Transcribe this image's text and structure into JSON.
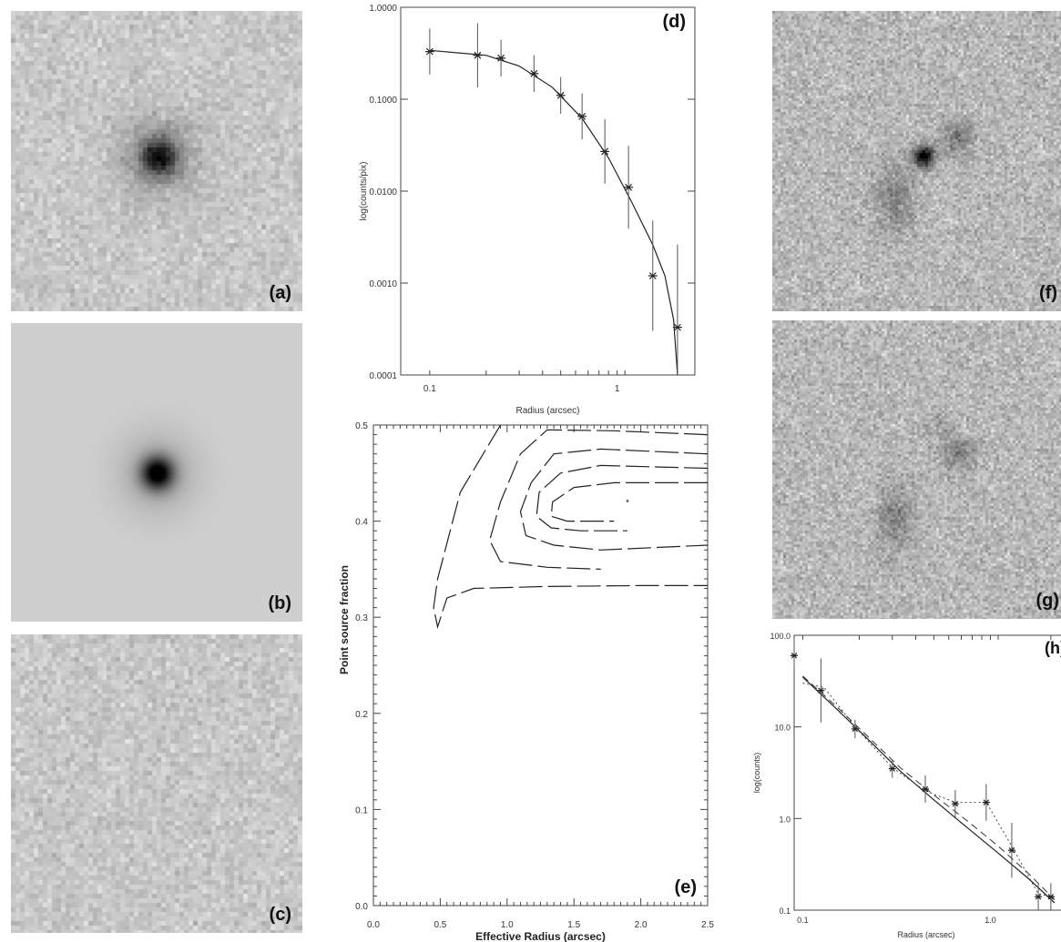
{
  "figure": {
    "panels": [
      {
        "id": "a",
        "label": "(a)",
        "kind": "noisy-image-with-central-source"
      },
      {
        "id": "b",
        "label": "(b)",
        "kind": "smooth-model-image"
      },
      {
        "id": "c",
        "label": "(c)",
        "kind": "residual-noise-image"
      },
      {
        "id": "f",
        "label": "(f)",
        "kind": "noisy-image-host-galaxy"
      },
      {
        "id": "g",
        "label": "(g)",
        "kind": "noisy-image-host-galaxy-residual"
      }
    ]
  },
  "chart_data": [
    {
      "id": "d",
      "label": "(d)",
      "type": "scatter",
      "xscale": "log",
      "yscale": "log",
      "xlabel": "Radius (arcsec)",
      "ylabel": "log(counts/pix)",
      "xticklabels": [
        "0.1",
        "1"
      ],
      "yticklabels": [
        "1.0000",
        "0.1000",
        "0.0100",
        "0.0010",
        "0.0001"
      ],
      "xlim": [
        0.07,
        2.6
      ],
      "ylim": [
        0.0001,
        1.0
      ],
      "series": [
        {
          "style": "points-with-errorbars",
          "points": [
            {
              "x": 0.1,
              "y": 0.33
            },
            {
              "x": 0.18,
              "y": 0.3
            },
            {
              "x": 0.24,
              "y": 0.28
            },
            {
              "x": 0.36,
              "y": 0.19
            },
            {
              "x": 0.5,
              "y": 0.11
            },
            {
              "x": 0.65,
              "y": 0.065
            },
            {
              "x": 0.86,
              "y": 0.027
            },
            {
              "x": 1.15,
              "y": 0.011
            },
            {
              "x": 1.55,
              "y": 0.0012
            },
            {
              "x": 2.1,
              "y": 0.00033
            }
          ],
          "errors": [
            0.25,
            0.35,
            0.2,
            0.2,
            0.2,
            0.25,
            0.35,
            0.45,
            0.6,
            0.9
          ]
        },
        {
          "style": "solid-line",
          "points": [
            {
              "x": 0.1,
              "y": 0.34
            },
            {
              "x": 0.2,
              "y": 0.3
            },
            {
              "x": 0.3,
              "y": 0.23
            },
            {
              "x": 0.45,
              "y": 0.135
            },
            {
              "x": 0.65,
              "y": 0.062
            },
            {
              "x": 0.9,
              "y": 0.023
            },
            {
              "x": 1.2,
              "y": 0.0075
            },
            {
              "x": 1.55,
              "y": 0.0026
            },
            {
              "x": 1.8,
              "y": 0.0012
            },
            {
              "x": 2.0,
              "y": 0.0004
            },
            {
              "x": 2.1,
              "y": 0.0001
            }
          ]
        }
      ]
    },
    {
      "id": "e",
      "label": "(e)",
      "type": "contour",
      "xlabel": "Effective Radius (arcsec)",
      "ylabel": "Point source fraction",
      "xlim": [
        0.0,
        2.5
      ],
      "ylim": [
        0.0,
        0.5
      ],
      "xticklabels": [
        "0.0",
        "0.5",
        "1.0",
        "1.5",
        "2.0",
        "2.5"
      ],
      "yticklabels": [
        "0.0",
        "0.1",
        "0.2",
        "0.3",
        "0.4",
        "0.5"
      ],
      "best_fit": {
        "x": 1.9,
        "y": 0.42
      },
      "contours": [
        {
          "style": "long-dash",
          "points": [
            [
              0.95,
              0.5
            ],
            [
              0.65,
              0.43
            ],
            [
              0.48,
              0.34
            ],
            [
              0.45,
              0.31
            ],
            [
              0.48,
              0.29
            ],
            [
              0.55,
              0.32
            ],
            [
              0.75,
              0.33
            ],
            [
              1.3,
              0.332
            ],
            [
              2.0,
              0.333
            ],
            [
              2.5,
              0.333
            ]
          ]
        },
        {
          "style": "long-dash",
          "points": [
            [
              2.5,
              0.49
            ],
            [
              1.8,
              0.494
            ],
            [
              1.3,
              0.495
            ],
            [
              1.1,
              0.47
            ],
            [
              0.95,
              0.42
            ],
            [
              0.87,
              0.38
            ],
            [
              0.95,
              0.358
            ],
            [
              1.3,
              0.352
            ],
            [
              1.7,
              0.35
            ]
          ]
        },
        {
          "style": "long-dash",
          "points": [
            [
              2.5,
              0.47
            ],
            [
              1.7,
              0.475
            ],
            [
              1.35,
              0.47
            ],
            [
              1.18,
              0.44
            ],
            [
              1.1,
              0.41
            ],
            [
              1.14,
              0.385
            ],
            [
              1.35,
              0.375
            ],
            [
              1.7,
              0.37
            ],
            [
              2.5,
              0.375
            ]
          ]
        },
        {
          "style": "long-dash",
          "points": [
            [
              2.5,
              0.455
            ],
            [
              1.7,
              0.458
            ],
            [
              1.4,
              0.45
            ],
            [
              1.24,
              0.43
            ],
            [
              1.22,
              0.405
            ],
            [
              1.33,
              0.393
            ],
            [
              1.55,
              0.39
            ],
            [
              1.9,
              0.39
            ]
          ]
        },
        {
          "style": "long-dash",
          "points": [
            [
              2.5,
              0.44
            ],
            [
              1.8,
              0.44
            ],
            [
              1.5,
              0.435
            ],
            [
              1.34,
              0.42
            ],
            [
              1.33,
              0.405
            ],
            [
              1.45,
              0.4
            ],
            [
              1.65,
              0.4
            ],
            [
              1.8,
              0.4
            ]
          ]
        }
      ]
    },
    {
      "id": "h",
      "label": "(h)",
      "type": "scatter",
      "xscale": "log",
      "yscale": "log",
      "xlabel": "Radius (arcsec)",
      "ylabel": "log(counts)",
      "xticklabels": [
        "0.1",
        "1.0"
      ],
      "yticklabels": [
        "100.0",
        "10.0",
        "1.0",
        "0.1"
      ],
      "xlim": [
        0.09,
        2.3
      ],
      "ylim": [
        0.1,
        100.0
      ],
      "series": [
        {
          "style": "points-with-errorbars",
          "points": [
            {
              "x": 0.09,
              "y": 60
            },
            {
              "x": 0.125,
              "y": 25
            },
            {
              "x": 0.19,
              "y": 9.5
            },
            {
              "x": 0.3,
              "y": 3.5
            },
            {
              "x": 0.45,
              "y": 2.1
            },
            {
              "x": 0.65,
              "y": 1.45
            },
            {
              "x": 0.95,
              "y": 1.5
            },
            {
              "x": 1.3,
              "y": 0.45
            },
            {
              "x": 1.8,
              "y": 0.14
            },
            {
              "x": 2.1,
              "y": 0.14
            }
          ],
          "errors": [
            0.15,
            0.35,
            0.1,
            0.1,
            0.15,
            0.15,
            0.2,
            0.3,
            0.15,
            0.15
          ]
        },
        {
          "style": "dotted-line",
          "points": [
            {
              "x": 0.1,
              "y": 30
            },
            {
              "x": 0.13,
              "y": 27
            },
            {
              "x": 0.19,
              "y": 10
            },
            {
              "x": 0.3,
              "y": 3.6
            },
            {
              "x": 0.45,
              "y": 2.0
            },
            {
              "x": 0.65,
              "y": 1.5
            },
            {
              "x": 0.95,
              "y": 1.5
            },
            {
              "x": 1.3,
              "y": 0.5
            },
            {
              "x": 1.8,
              "y": 0.15
            },
            {
              "x": 2.2,
              "y": 0.14
            }
          ]
        },
        {
          "style": "solid-line",
          "points": [
            {
              "x": 0.1,
              "y": 35
            },
            {
              "x": 0.15,
              "y": 16
            },
            {
              "x": 0.22,
              "y": 7.5
            },
            {
              "x": 0.33,
              "y": 3.3
            },
            {
              "x": 0.5,
              "y": 1.6
            },
            {
              "x": 0.75,
              "y": 0.8
            },
            {
              "x": 1.1,
              "y": 0.42
            },
            {
              "x": 1.6,
              "y": 0.22
            },
            {
              "x": 2.2,
              "y": 0.12
            }
          ]
        },
        {
          "style": "dashed-line",
          "points": [
            {
              "x": 0.1,
              "y": 36
            },
            {
              "x": 0.15,
              "y": 17
            },
            {
              "x": 0.22,
              "y": 8
            },
            {
              "x": 0.33,
              "y": 3.6
            },
            {
              "x": 0.5,
              "y": 1.8
            },
            {
              "x": 0.75,
              "y": 0.95
            },
            {
              "x": 1.1,
              "y": 0.5
            },
            {
              "x": 1.6,
              "y": 0.25
            },
            {
              "x": 2.2,
              "y": 0.13
            }
          ]
        }
      ]
    }
  ]
}
